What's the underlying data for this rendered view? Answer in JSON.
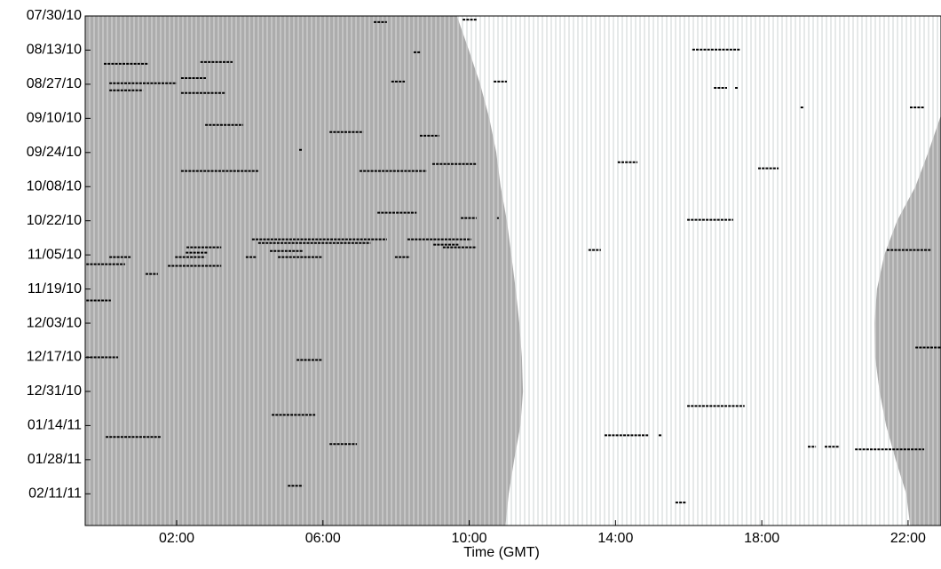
{
  "chart_data": {
    "type": "timeline",
    "xlabel": "Time (GMT)",
    "xlim": [
      -0.5,
      22.9
    ],
    "xticks": [
      {
        "value": 2,
        "label": "02:00"
      },
      {
        "value": 6,
        "label": "06:00"
      },
      {
        "value": 10,
        "label": "10:00"
      },
      {
        "value": 14,
        "label": "14:00"
      },
      {
        "value": 18,
        "label": "18:00"
      },
      {
        "value": 22,
        "label": "22:00"
      }
    ],
    "ylim": [
      209,
      0
    ],
    "yticks": [
      {
        "value": 0,
        "label": "07/30/10"
      },
      {
        "value": 14,
        "label": "08/13/10"
      },
      {
        "value": 28,
        "label": "08/27/10"
      },
      {
        "value": 42,
        "label": "09/10/10"
      },
      {
        "value": 56,
        "label": "09/24/10"
      },
      {
        "value": 70,
        "label": "10/08/10"
      },
      {
        "value": 84,
        "label": "10/22/10"
      },
      {
        "value": 98,
        "label": "11/05/10"
      },
      {
        "value": 112,
        "label": "11/19/10"
      },
      {
        "value": 126,
        "label": "12/03/10"
      },
      {
        "value": 140,
        "label": "12/17/10"
      },
      {
        "value": 154,
        "label": "12/31/10"
      },
      {
        "value": 168,
        "label": "01/14/11"
      },
      {
        "value": 182,
        "label": "01/28/11"
      },
      {
        "value": 196,
        "label": "02/11/11"
      }
    ],
    "night_color": "#acacac",
    "day_color": "#ffffff",
    "event_color": "#000000",
    "night": {
      "date": [
        0,
        14,
        28,
        42,
        56,
        70,
        84,
        98,
        112,
        126,
        140,
        154,
        168,
        182,
        196,
        209
      ],
      "sunrise": [
        9.62,
        9.99,
        10.3,
        10.55,
        10.74,
        10.86,
        11.03,
        11.15,
        11.27,
        11.37,
        11.44,
        11.47,
        11.4,
        11.23,
        11.08,
        10.98
      ],
      "sunset": [
        23.8,
        23.5,
        23.2,
        22.87,
        22.55,
        22.2,
        21.7,
        21.35,
        21.15,
        21.08,
        21.1,
        21.22,
        21.4,
        21.66,
        21.95,
        22.07
      ]
    },
    "events": {
      "date": [
        2.5,
        1.5,
        13.8,
        14.9,
        19.6,
        18.9,
        27.6,
        25.5,
        30.5,
        31.6,
        26.9,
        26.9,
        29.5,
        29.5,
        37.5,
        37.5,
        44.7,
        47.6,
        49.1,
        54.9,
        60,
        60.7,
        63.6,
        63.6,
        62.5,
        80.7,
        82.9,
        82.9,
        83.6,
        91.6,
        93.1,
        91.6,
        93.8,
        94.9,
        94.9,
        96.4,
        96,
        96,
        97.1,
        98.9,
        98.9,
        98.9,
        98.9,
        98.9,
        101.8,
        102.5,
        105.8,
        116.7,
        140,
        141.1,
        136,
        160,
        163.6,
        172,
        172,
        172.7,
        175.6,
        176.7,
        176.7,
        177.8,
        192.7,
        199.6
      ],
      "start": [
        7.39,
        9.82,
        16.1,
        8.48,
        0.01,
        2.65,
        0.16,
        2.12,
        0.16,
        2.12,
        7.87,
        10.67,
        16.69,
        17.27,
        19.06,
        22.05,
        2.78,
        6.18,
        8.65,
        5.35,
        14.06,
        8.99,
        2.12,
        7.0,
        17.9,
        7.49,
        9.77,
        10.76,
        15.96,
        4.06,
        4.23,
        8.31,
        9.02,
        9.28,
        2.27,
        4.55,
        13.26,
        21.42,
        2.25,
        0.16,
        1.96,
        4.77,
        7.97,
        3.89,
        -0.47,
        1.76,
        1.15,
        -0.47,
        -0.47,
        5.28,
        22.2,
        15.96,
        4.6,
        13.7,
        15.18,
        0.06,
        6.18,
        19.26,
        19.72,
        20.55,
        5.04,
        15.64
      ],
      "end": [
        7.75,
        10.2,
        17.4,
        8.68,
        1.22,
        3.53,
        2.0,
        2.8,
        1.08,
        3.34,
        8.24,
        11.03,
        17.05,
        17.34,
        19.16,
        22.44,
        3.82,
        7.1,
        9.18,
        5.44,
        14.6,
        10.2,
        4.26,
        8.84,
        18.46,
        8.56,
        10.2,
        10.81,
        17.22,
        7.75,
        7.3,
        10.06,
        9.72,
        10.2,
        3.22,
        5.45,
        13.6,
        22.63,
        2.85,
        0.74,
        2.78,
        5.98,
        8.38,
        4.18,
        0.59,
        3.22,
        1.49,
        0.2,
        0.4,
        5.98,
        22.92,
        17.53,
        5.79,
        14.91,
        15.26,
        1.56,
        6.93,
        19.48,
        20.13,
        22.44,
        5.45,
        15.93
      ]
    }
  }
}
